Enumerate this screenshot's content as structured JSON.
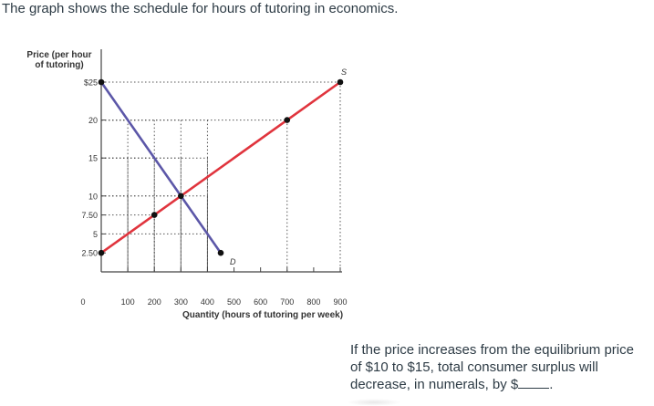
{
  "intro_text": "The graph shows the schedule for hours of tutoring in economics.",
  "question": {
    "text_before_blank": "If the price increases from the equilibrium price of $10 to $15, total consumer surplus will decrease, in numerals, by $",
    "text_after_blank": "."
  },
  "chart_data": {
    "type": "line",
    "ylabel_line1": "Price (per hour",
    "ylabel_line2": "of tutoring)",
    "xlabel": "Quantity (hours of tutoring per week)",
    "xlim": [
      0,
      900
    ],
    "ylim": [
      0,
      25
    ],
    "x_ticks": [
      0,
      100,
      200,
      300,
      400,
      500,
      600,
      700,
      800,
      900
    ],
    "y_ticks": [
      {
        "value": 25,
        "label": "$25"
      },
      {
        "value": 20,
        "label": "20"
      },
      {
        "value": 15,
        "label": "15"
      },
      {
        "value": 10,
        "label": "10"
      },
      {
        "value": 7.5,
        "label": "7.50"
      },
      {
        "value": 5,
        "label": "5"
      },
      {
        "value": 2.5,
        "label": "2.50"
      }
    ],
    "series": [
      {
        "name": "D",
        "color": "#5c57a8",
        "points": [
          [
            0,
            25
          ],
          [
            450,
            2.5
          ]
        ],
        "markers": [
          [
            0,
            25
          ],
          [
            450,
            2.5
          ]
        ]
      },
      {
        "name": "S",
        "color": "#e0343d",
        "points": [
          [
            0,
            2.5
          ],
          [
            900,
            25
          ]
        ],
        "markers": [
          [
            0,
            2.5
          ],
          [
            200,
            7.5
          ],
          [
            700,
            20
          ],
          [
            900,
            25
          ]
        ]
      }
    ],
    "equilibrium_marker": [
      300,
      10
    ],
    "guides": [
      {
        "x": 100,
        "y": 10
      },
      {
        "x": 100,
        "y": 15
      },
      {
        "x": 100,
        "y": 20
      },
      {
        "x": 200,
        "y": 7.5
      },
      {
        "x": 200,
        "y": 15
      },
      {
        "x": 200,
        "y": 20
      },
      {
        "x": 300,
        "y": 10
      },
      {
        "x": 300,
        "y": 15
      },
      {
        "x": 300,
        "y": 20
      },
      {
        "x": 400,
        "y": 5
      },
      {
        "x": 400,
        "y": 10
      },
      {
        "x": 400,
        "y": 15
      },
      {
        "x": 400,
        "y": 20
      },
      {
        "x": 700,
        "y": 20
      },
      {
        "x": 900,
        "y": 25
      }
    ]
  }
}
